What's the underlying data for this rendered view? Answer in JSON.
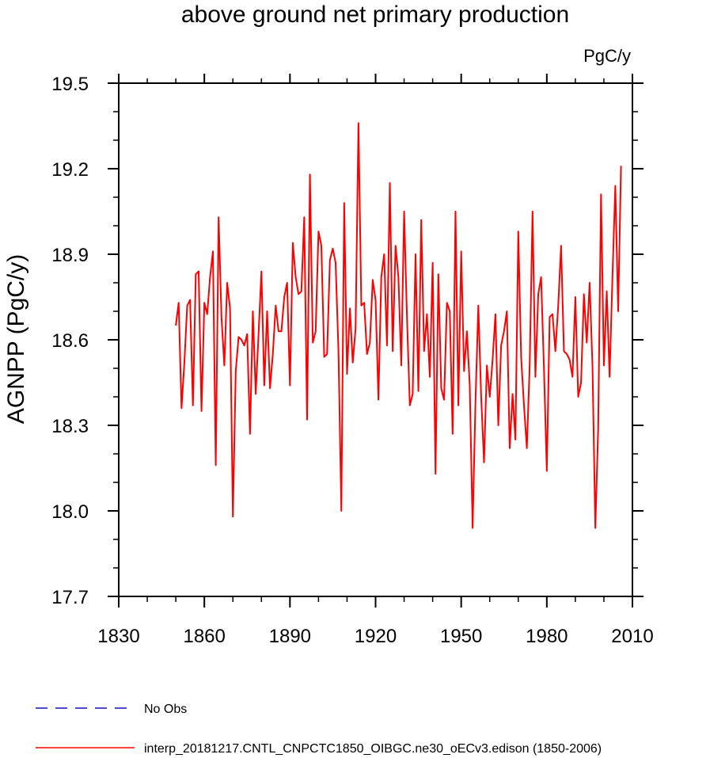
{
  "chart_data": {
    "type": "line",
    "title": "above ground net primary production",
    "units_label": "PgC/y",
    "xlabel": "",
    "ylabel": "AGNPP  (PgC/y)",
    "xlim": [
      1830,
      2010
    ],
    "ylim": [
      17.7,
      19.5
    ],
    "x_major_ticks": [
      1830,
      1860,
      1890,
      1920,
      1950,
      1980,
      2010
    ],
    "x_tick_labels": [
      "1830",
      "1860",
      "1890",
      "1920",
      "1950",
      "1980",
      "2010"
    ],
    "x_minor_step": 10,
    "y_major_ticks": [
      17.7,
      18.0,
      18.3,
      18.6,
      18.9,
      19.2,
      19.5
    ],
    "y_tick_labels": [
      "17.7",
      "18.0",
      "18.3",
      "18.6",
      "18.9",
      "19.2",
      "19.5"
    ],
    "y_minor_step": 0.1,
    "grid": false,
    "legend_position": "bottom",
    "legend": [
      {
        "label": "No Obs",
        "color": "#1010c8",
        "dash": "dashed"
      },
      {
        "label": "interp_20181217.CNTL_CNPCTC1850_OIBGC.ne30_oECv3.edison (1850-2006)",
        "color": "#ff0000",
        "dash": "solid"
      }
    ],
    "series": [
      {
        "name": "interp_20181217.CNTL_CNPCTC1850_OIBGC.ne30_oECv3.edison (1850-2006)",
        "color": "#ff0000",
        "x_start": 1850,
        "x_step": 1,
        "values": [
          18.65,
          18.73,
          18.36,
          18.52,
          18.72,
          18.74,
          18.37,
          18.83,
          18.84,
          18.35,
          18.73,
          18.69,
          18.82,
          18.91,
          18.16,
          19.03,
          18.68,
          18.51,
          18.8,
          18.71,
          17.98,
          18.49,
          18.61,
          18.6,
          18.58,
          18.62,
          18.27,
          18.7,
          18.41,
          18.62,
          18.84,
          18.44,
          18.7,
          18.43,
          18.55,
          18.72,
          18.63,
          18.63,
          18.75,
          18.8,
          18.44,
          18.94,
          18.82,
          18.76,
          18.77,
          19.03,
          18.32,
          19.18,
          18.59,
          18.63,
          18.98,
          18.93,
          18.54,
          18.55,
          18.88,
          18.92,
          18.87,
          18.56,
          18.0,
          19.08,
          18.48,
          18.71,
          18.52,
          18.64,
          19.36,
          18.72,
          18.73,
          18.55,
          18.59,
          18.81,
          18.74,
          18.39,
          18.82,
          18.9,
          18.58,
          19.15,
          18.56,
          18.93,
          18.82,
          18.51,
          19.05,
          18.68,
          18.37,
          18.41,
          18.9,
          18.42,
          19.02,
          18.56,
          18.69,
          18.47,
          18.87,
          18.13,
          18.83,
          18.43,
          18.39,
          18.73,
          18.7,
          18.27,
          19.05,
          18.37,
          18.91,
          18.49,
          18.63,
          18.44,
          17.94,
          18.38,
          18.72,
          18.4,
          18.17,
          18.51,
          18.4,
          18.53,
          18.69,
          18.3,
          18.58,
          18.63,
          18.7,
          18.22,
          18.41,
          18.25,
          18.98,
          18.54,
          18.37,
          18.22,
          18.51,
          19.05,
          18.47,
          18.76,
          18.82,
          18.5,
          18.14,
          18.68,
          18.69,
          18.56,
          18.72,
          18.93,
          18.56,
          18.55,
          18.53,
          18.47,
          18.75,
          18.4,
          18.45,
          18.76,
          18.59,
          18.8,
          18.51,
          17.94,
          18.29,
          19.11,
          18.51,
          18.77,
          18.47,
          18.82,
          19.14,
          18.7,
          19.21
        ]
      }
    ]
  }
}
